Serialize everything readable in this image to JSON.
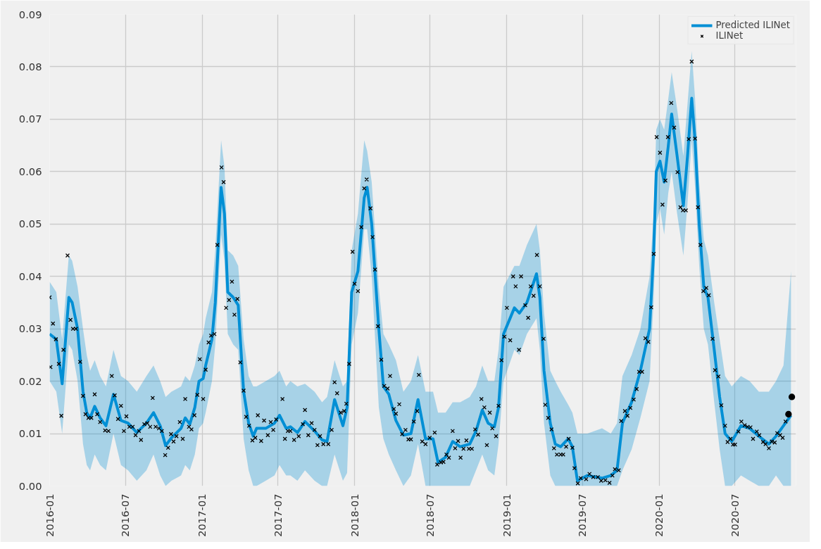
{
  "chart_data": {
    "type": "line",
    "xlim": [
      "2016-01-01",
      "2020-11-24"
    ],
    "ylim": [
      0,
      0.09
    ],
    "xticks": [
      {
        "value": "2016-01-01",
        "label": "2016-01"
      },
      {
        "value": "2016-07-01",
        "label": "2016-07"
      },
      {
        "value": "2017-01-01",
        "label": "2017-01"
      },
      {
        "value": "2017-07-01",
        "label": "2017-07"
      },
      {
        "value": "2018-01-01",
        "label": "2018-01"
      },
      {
        "value": "2018-07-01",
        "label": "2018-07"
      },
      {
        "value": "2019-01-01",
        "label": "2019-01"
      },
      {
        "value": "2019-07-01",
        "label": "2019-07"
      },
      {
        "value": "2020-01-01",
        "label": "2020-01"
      },
      {
        "value": "2020-07-01",
        "label": "2020-07"
      }
    ],
    "yticks": [
      {
        "value": 0,
        "label": "0.00"
      },
      {
        "value": 0.01,
        "label": "0.01"
      },
      {
        "value": 0.02,
        "label": "0.02"
      },
      {
        "value": 0.03,
        "label": "0.03"
      },
      {
        "value": 0.04,
        "label": "0.04"
      },
      {
        "value": 0.05,
        "label": "0.05"
      },
      {
        "value": 0.06,
        "label": "0.06"
      },
      {
        "value": 0.07,
        "label": "0.07"
      },
      {
        "value": 0.08,
        "label": "0.08"
      },
      {
        "value": 0.09,
        "label": "0.09"
      }
    ],
    "grid": true,
    "legend": "top right",
    "line_style": "solid",
    "series": [
      {
        "name": "Predicted ILINet",
        "color": "#008fd5",
        "x": [
          "2016-01-01",
          "2016-01-17",
          "2016-01-31",
          "2016-02-16",
          "2016-02-24",
          "2016-03-08",
          "2016-03-21",
          "2016-03-30",
          "2016-04-07",
          "2016-04-18",
          "2016-05-01",
          "2016-05-15",
          "2016-06-02",
          "2016-06-20",
          "2016-07-07",
          "2016-07-28",
          "2016-08-20",
          "2016-09-06",
          "2016-09-22",
          "2016-10-05",
          "2016-10-19",
          "2016-11-11",
          "2016-11-21",
          "2016-12-02",
          "2016-12-14",
          "2016-12-24",
          "2017-01-03",
          "2017-01-09",
          "2017-01-24",
          "2017-02-01",
          "2017-02-15",
          "2017-02-23",
          "2017-03-03",
          "2017-03-16",
          "2017-03-28",
          "2017-04-10",
          "2017-04-22",
          "2017-05-03",
          "2017-05-11",
          "2017-06-02",
          "2017-06-23",
          "2017-07-05",
          "2017-07-21",
          "2017-07-31",
          "2017-08-17",
          "2017-09-04",
          "2017-09-27",
          "2017-10-15",
          "2017-10-27",
          "2017-11-14",
          "2017-12-04",
          "2017-12-14",
          "2017-12-25",
          "2018-01-09",
          "2018-01-24",
          "2018-01-31",
          "2018-02-11",
          "2018-02-28",
          "2018-03-11",
          "2018-03-24",
          "2018-04-10",
          "2018-04-28",
          "2018-05-16",
          "2018-06-02",
          "2018-06-20",
          "2018-07-08",
          "2018-07-20",
          "2018-08-07",
          "2018-08-24",
          "2018-09-11",
          "2018-10-04",
          "2018-10-19",
          "2018-11-03",
          "2018-11-17",
          "2018-12-02",
          "2018-12-12",
          "2018-12-24",
          "2019-01-19",
          "2019-01-31",
          "2019-02-18",
          "2019-03-13",
          "2019-03-21",
          "2019-03-31",
          "2019-04-15",
          "2019-04-27",
          "2019-05-10",
          "2019-05-28",
          "2019-06-07",
          "2019-06-19",
          "2019-07-13",
          "2019-08-17",
          "2019-09-07",
          "2019-09-22",
          "2019-10-05",
          "2019-10-27",
          "2019-11-17",
          "2019-12-09",
          "2019-12-19",
          "2019-12-25",
          "2020-01-03",
          "2020-01-13",
          "2020-01-23",
          "2020-01-31",
          "2020-02-13",
          "2020-02-28",
          "2020-03-09",
          "2020-03-19",
          "2020-03-27",
          "2020-04-06",
          "2020-04-17",
          "2020-04-27",
          "2020-05-12",
          "2020-05-25",
          "2020-06-07",
          "2020-06-23",
          "2020-07-15",
          "2020-08-05",
          "2020-08-27",
          "2020-09-20",
          "2020-10-07",
          "2020-10-25",
          "2020-11-12"
        ],
        "values": [
          0.029,
          0.028,
          0.0195,
          0.036,
          0.035,
          0.03,
          0.018,
          0.014,
          0.013,
          0.0152,
          0.013,
          0.0115,
          0.0175,
          0.0125,
          0.012,
          0.0102,
          0.012,
          0.014,
          0.0115,
          0.0077,
          0.0092,
          0.011,
          0.013,
          0.0118,
          0.015,
          0.02,
          0.0205,
          0.023,
          0.028,
          0.035,
          0.057,
          0.052,
          0.037,
          0.036,
          0.0345,
          0.018,
          0.012,
          0.0095,
          0.011,
          0.011,
          0.012,
          0.0135,
          0.011,
          0.0113,
          0.0102,
          0.0123,
          0.0105,
          0.0088,
          0.0085,
          0.0165,
          0.0115,
          0.015,
          0.037,
          0.041,
          0.055,
          0.057,
          0.05,
          0.03,
          0.019,
          0.0175,
          0.0125,
          0.0097,
          0.01,
          0.0165,
          0.009,
          0.009,
          0.0045,
          0.0055,
          0.0085,
          0.0075,
          0.008,
          0.0105,
          0.0145,
          0.012,
          0.0113,
          0.015,
          0.029,
          0.034,
          0.033,
          0.035,
          0.0405,
          0.036,
          0.022,
          0.012,
          0.008,
          0.0075,
          0.009,
          0.0075,
          0.001,
          0.002,
          0.0015,
          0.002,
          0.003,
          0.012,
          0.016,
          0.022,
          0.03,
          0.045,
          0.06,
          0.062,
          0.058,
          0.065,
          0.071,
          0.063,
          0.0535,
          0.063,
          0.074,
          0.066,
          0.05,
          0.038,
          0.036,
          0.026,
          0.017,
          0.01,
          0.0085,
          0.0115,
          0.011,
          0.0095,
          0.008,
          0.0095,
          0.0115,
          0.0135
        ],
        "lower": [
          0.02,
          0.018,
          0.01,
          0.027,
          0.026,
          0.02,
          0.008,
          0.004,
          0.003,
          0.006,
          0.004,
          0.003,
          0.01,
          0.004,
          0.003,
          0.001,
          0.003,
          0.006,
          0.002,
          0.0,
          0.001,
          0.002,
          0.004,
          0.003,
          0.006,
          0.011,
          0.012,
          0.014,
          0.02,
          0.027,
          0.048,
          0.043,
          0.029,
          0.027,
          0.026,
          0.009,
          0.003,
          0.0,
          0.0,
          0.001,
          0.002,
          0.004,
          0.002,
          0.002,
          0.001,
          0.003,
          0.001,
          0.0,
          0.0,
          0.006,
          0.001,
          0.0025,
          0.027,
          0.033,
          0.049,
          0.049,
          0.04,
          0.015,
          0.009,
          0.006,
          0.003,
          0.0,
          0.002,
          0.008,
          0.0,
          0.0,
          0.0,
          0.0,
          0.0,
          0.0,
          0.0,
          0.003,
          0.006,
          0.003,
          0.002,
          0.008,
          0.02,
          0.026,
          0.025,
          0.029,
          0.032,
          0.026,
          0.012,
          0.002,
          0.0,
          0.0,
          0.0,
          0.0,
          0.0,
          0.0,
          0.0,
          0.0,
          0.0,
          0.003,
          0.007,
          0.013,
          0.02,
          0.036,
          0.05,
          0.053,
          0.048,
          0.056,
          0.06,
          0.052,
          0.044,
          0.054,
          0.066,
          0.057,
          0.042,
          0.03,
          0.027,
          0.016,
          0.007,
          0.0,
          0.0,
          0.002,
          0.001,
          0.0,
          0.0,
          0.002,
          0.0,
          0.0
        ],
        "upper": [
          0.039,
          0.037,
          0.028,
          0.044,
          0.043,
          0.038,
          0.03,
          0.025,
          0.022,
          0.024,
          0.021,
          0.019,
          0.026,
          0.021,
          0.02,
          0.018,
          0.021,
          0.023,
          0.02,
          0.017,
          0.018,
          0.019,
          0.021,
          0.02,
          0.023,
          0.027,
          0.029,
          0.032,
          0.037,
          0.045,
          0.066,
          0.061,
          0.045,
          0.044,
          0.042,
          0.028,
          0.021,
          0.019,
          0.019,
          0.02,
          0.021,
          0.022,
          0.019,
          0.02,
          0.019,
          0.0195,
          0.018,
          0.016,
          0.017,
          0.024,
          0.019,
          0.02,
          0.045,
          0.052,
          0.066,
          0.064,
          0.058,
          0.038,
          0.029,
          0.027,
          0.024,
          0.018,
          0.02,
          0.025,
          0.018,
          0.018,
          0.014,
          0.014,
          0.016,
          0.016,
          0.017,
          0.019,
          0.023,
          0.02,
          0.02,
          0.026,
          0.038,
          0.042,
          0.042,
          0.046,
          0.05,
          0.045,
          0.033,
          0.022,
          0.02,
          0.018,
          0.0155,
          0.014,
          0.01,
          0.01,
          0.011,
          0.01,
          0.012,
          0.021,
          0.025,
          0.03,
          0.04,
          0.052,
          0.068,
          0.07,
          0.068,
          0.074,
          0.079,
          0.072,
          0.063,
          0.073,
          0.083,
          0.074,
          0.058,
          0.047,
          0.044,
          0.035,
          0.028,
          0.021,
          0.019,
          0.021,
          0.02,
          0.018,
          0.018,
          0.02,
          0.023,
          0.041
        ]
      },
      {
        "name": "ILINet",
        "type": "scatter",
        "marker": "cross",
        "color": "#000000",
        "x": [
          "2016-01-01",
          "2016-01-03",
          "2016-01-09",
          "2016-01-16",
          "2016-01-23",
          "2016-01-29",
          "2016-02-03",
          "2016-02-13",
          "2016-02-20",
          "2016-02-26",
          "2016-03-04",
          "2016-03-14",
          "2016-03-21",
          "2016-03-27",
          "2016-04-03",
          "2016-04-10",
          "2016-04-18",
          "2016-04-24",
          "2016-05-01",
          "2016-05-13",
          "2016-05-21",
          "2016-05-29",
          "2016-06-05",
          "2016-06-13",
          "2016-06-20",
          "2016-06-27",
          "2016-07-03",
          "2016-07-10",
          "2016-07-18",
          "2016-07-25",
          "2016-08-02",
          "2016-08-07",
          "2016-08-15",
          "2016-08-22",
          "2016-08-29",
          "2016-09-04",
          "2016-09-11",
          "2016-09-19",
          "2016-09-26",
          "2016-10-04",
          "2016-10-11",
          "2016-10-18",
          "2016-10-24",
          "2016-10-31",
          "2016-11-08",
          "2016-11-15",
          "2016-11-21",
          "2016-11-30",
          "2016-12-06",
          "2016-12-13",
          "2016-12-20",
          "2016-12-26",
          "2017-01-03",
          "2017-01-09",
          "2017-01-16",
          "2017-01-22",
          "2017-01-30",
          "2017-02-06",
          "2017-02-16",
          "2017-02-21",
          "2017-02-27",
          "2017-03-06",
          "2017-03-13",
          "2017-03-19",
          "2017-03-26",
          "2017-04-02",
          "2017-04-10",
          "2017-04-16",
          "2017-04-23",
          "2017-05-01",
          "2017-05-08",
          "2017-05-14",
          "2017-05-22",
          "2017-05-29",
          "2017-06-07",
          "2017-06-14",
          "2017-06-20",
          "2017-06-27",
          "2017-07-12",
          "2017-07-18",
          "2017-07-25",
          "2017-07-31",
          "2017-08-09",
          "2017-08-20",
          "2017-08-30",
          "2017-09-04",
          "2017-09-12",
          "2017-09-20",
          "2017-09-27",
          "2017-10-04",
          "2017-10-10",
          "2017-10-18",
          "2017-10-30",
          "2017-11-07",
          "2017-11-14",
          "2017-11-20",
          "2017-11-29",
          "2017-12-07",
          "2017-12-12",
          "2017-12-19",
          "2017-12-27",
          "2018-01-01",
          "2018-01-09",
          "2018-01-17",
          "2018-01-24",
          "2018-01-30",
          "2018-02-08",
          "2018-02-13",
          "2018-02-19",
          "2018-02-26",
          "2018-03-06",
          "2018-03-13",
          "2018-03-21",
          "2018-03-27",
          "2018-04-05",
          "2018-04-10",
          "2018-04-18",
          "2018-04-25",
          "2018-05-03",
          "2018-05-10",
          "2018-05-16",
          "2018-05-23",
          "2018-05-31",
          "2018-06-04",
          "2018-06-12",
          "2018-06-20",
          "2018-06-30",
          "2018-07-12",
          "2018-07-18",
          "2018-07-27",
          "2018-08-02",
          "2018-08-09",
          "2018-08-15",
          "2018-08-24",
          "2018-08-30",
          "2018-09-06",
          "2018-09-12",
          "2018-09-19",
          "2018-09-26",
          "2018-10-02",
          "2018-10-09",
          "2018-10-17",
          "2018-10-24",
          "2018-11-01",
          "2018-11-08",
          "2018-11-14",
          "2018-11-21",
          "2018-11-27",
          "2018-12-06",
          "2018-12-12",
          "2018-12-19",
          "2018-12-26",
          "2019-01-01",
          "2019-01-09",
          "2019-01-16",
          "2019-01-22",
          "2019-01-30",
          "2019-02-04",
          "2019-02-14",
          "2019-02-21",
          "2019-02-27",
          "2019-03-06",
          "2019-03-14",
          "2019-03-21",
          "2019-03-30",
          "2019-04-03",
          "2019-04-10",
          "2019-04-18",
          "2019-04-24",
          "2019-05-01",
          "2019-05-10",
          "2019-05-16",
          "2019-05-23",
          "2019-05-29",
          "2019-06-07",
          "2019-06-12",
          "2019-06-20",
          "2019-06-27",
          "2019-07-10",
          "2019-07-18",
          "2019-07-27",
          "2019-08-07",
          "2019-08-15",
          "2019-08-25",
          "2019-09-04",
          "2019-09-11",
          "2019-09-17",
          "2019-09-26",
          "2019-10-02",
          "2019-10-11",
          "2019-10-17",
          "2019-10-24",
          "2019-11-01",
          "2019-11-08",
          "2019-11-14",
          "2019-11-21",
          "2019-11-29",
          "2019-12-06",
          "2019-12-13",
          "2019-12-19",
          "2019-12-26",
          "2020-01-03",
          "2020-01-09",
          "2020-01-16",
          "2020-01-22",
          "2020-01-30",
          "2020-02-06",
          "2020-02-14",
          "2020-02-21",
          "2020-02-27",
          "2020-03-05",
          "2020-03-12",
          "2020-03-19",
          "2020-03-27",
          "2020-04-03",
          "2020-04-09",
          "2020-04-16",
          "2020-04-23",
          "2020-04-29",
          "2020-05-08",
          "2020-05-14",
          "2020-05-22",
          "2020-05-29",
          "2020-06-07",
          "2020-06-13",
          "2020-06-20",
          "2020-06-26",
          "2020-07-01",
          "2020-07-09",
          "2020-07-16",
          "2020-07-24",
          "2020-07-31",
          "2020-08-07",
          "2020-08-13",
          "2020-08-22",
          "2020-08-28",
          "2020-09-06",
          "2020-09-12",
          "2020-09-20",
          "2020-09-27",
          "2020-10-04",
          "2020-10-10",
          "2020-10-17",
          "2020-10-23",
          "2020-10-30"
        ],
        "values": [
          0.036,
          0.0227,
          0.031,
          0.028,
          0.0233,
          0.0134,
          0.026,
          0.044,
          0.0317,
          0.03,
          0.03,
          0.0237,
          0.0172,
          0.0137,
          0.013,
          0.013,
          0.0175,
          0.0137,
          0.0122,
          0.0106,
          0.0105,
          0.021,
          0.0173,
          0.0128,
          0.0153,
          0.0105,
          0.0133,
          0.0113,
          0.0113,
          0.0097,
          0.0105,
          0.0088,
          0.0118,
          0.012,
          0.0113,
          0.0168,
          0.0113,
          0.011,
          0.0105,
          0.0059,
          0.0073,
          0.0099,
          0.0085,
          0.0095,
          0.0122,
          0.009,
          0.0166,
          0.0113,
          0.0108,
          0.0135,
          0.0174,
          0.0242,
          0.0166,
          0.0222,
          0.0274,
          0.0287,
          0.029,
          0.046,
          0.0608,
          0.058,
          0.034,
          0.0355,
          0.039,
          0.0327,
          0.0357,
          0.0236,
          0.0182,
          0.0132,
          0.0115,
          0.0087,
          0.0092,
          0.0135,
          0.0086,
          0.0125,
          0.0097,
          0.0122,
          0.0107,
          0.0127,
          0.0166,
          0.009,
          0.0105,
          0.0105,
          0.0088,
          0.0095,
          0.0118,
          0.0145,
          0.0097,
          0.012,
          0.0107,
          0.0078,
          0.0095,
          0.008,
          0.008,
          0.0107,
          0.0198,
          0.0177,
          0.014,
          0.0143,
          0.0157,
          0.0233,
          0.0447,
          0.0386,
          0.0372,
          0.0494,
          0.0568,
          0.0585,
          0.053,
          0.0475,
          0.0413,
          0.0305,
          0.0241,
          0.0191,
          0.0186,
          0.021,
          0.0147,
          0.0138,
          0.0156,
          0.0099,
          0.0107,
          0.0089,
          0.0089,
          0.0123,
          0.0143,
          0.0212,
          0.0085,
          0.008,
          0.0092,
          0.0102,
          0.0041,
          0.0045,
          0.0046,
          0.006,
          0.0054,
          0.0105,
          0.0072,
          0.0086,
          0.0054,
          0.0071,
          0.0087,
          0.0071,
          0.0071,
          0.0108,
          0.0098,
          0.0166,
          0.015,
          0.0078,
          0.014,
          0.011,
          0.0095,
          0.0153,
          0.024,
          0.0285,
          0.034,
          0.0278,
          0.04,
          0.0381,
          0.026,
          0.04,
          0.0345,
          0.0321,
          0.0381,
          0.0363,
          0.0441,
          0.0381,
          0.0281,
          0.0155,
          0.013,
          0.0108,
          0.0072,
          0.006,
          0.006,
          0.006,
          0.0075,
          0.009,
          0.0073,
          0.0034,
          0.0005,
          0.0015,
          0.0013,
          0.0023,
          0.0017,
          0.0017,
          0.001,
          0.0011,
          0.0006,
          0.002,
          0.0032,
          0.003,
          0.0124,
          0.0143,
          0.0134,
          0.0149,
          0.0165,
          0.0185,
          0.0218,
          0.0218,
          0.0282,
          0.0275,
          0.0341,
          0.0443,
          0.0666,
          0.0636,
          0.0537,
          0.0583,
          0.0666,
          0.0731,
          0.0684,
          0.0599,
          0.0532,
          0.0526,
          0.0526,
          0.0662,
          0.081,
          0.0663,
          0.0532,
          0.046,
          0.0372,
          0.0378,
          0.0364,
          0.0281,
          0.0221,
          0.0209,
          0.0154,
          0.0115,
          0.0084,
          0.009,
          0.0079,
          0.0079,
          0.0104,
          0.0123,
          0.0116,
          0.0113,
          0.0112,
          0.009,
          0.0104,
          0.0097,
          0.0084,
          0.008,
          0.0072,
          0.0085,
          0.0083,
          0.0101,
          0.0097,
          0.0092,
          0.0123
        ]
      },
      {
        "type": "scatter",
        "marker": "circle",
        "color": "#000000",
        "x": [
          "2020-11-06",
          "2020-11-14"
        ],
        "values": [
          0.0137,
          0.017
        ]
      }
    ]
  }
}
